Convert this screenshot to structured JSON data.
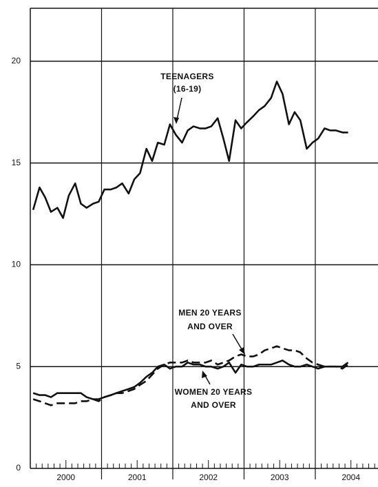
{
  "chart_data": {
    "type": "line",
    "x": [
      2000.04,
      2000.13,
      2000.21,
      2000.29,
      2000.38,
      2000.46,
      2000.54,
      2000.63,
      2000.71,
      2000.79,
      2000.88,
      2000.96,
      2001.04,
      2001.13,
      2001.21,
      2001.29,
      2001.38,
      2001.46,
      2001.54,
      2001.63,
      2001.71,
      2001.79,
      2001.88,
      2001.96,
      2002.04,
      2002.13,
      2002.21,
      2002.29,
      2002.38,
      2002.46,
      2002.54,
      2002.63,
      2002.71,
      2002.79,
      2002.88,
      2002.96,
      2003.04,
      2003.13,
      2003.21,
      2003.29,
      2003.38,
      2003.46,
      2003.54,
      2003.63,
      2003.71,
      2003.79,
      2003.88,
      2003.96,
      2004.04,
      2004.13,
      2004.21,
      2004.29,
      2004.38,
      2004.46
    ],
    "series": [
      {
        "name": "TEENAGERS (16-19)",
        "color": "#111111",
        "dashed": false,
        "values": [
          12.7,
          13.8,
          13.3,
          12.6,
          12.8,
          12.3,
          13.4,
          14.0,
          13.0,
          12.8,
          13.0,
          13.1,
          13.7,
          13.7,
          13.8,
          14.0,
          13.5,
          14.2,
          14.5,
          15.7,
          15.1,
          16.0,
          15.9,
          16.9,
          16.4,
          16.0,
          16.6,
          16.8,
          16.7,
          16.7,
          16.8,
          17.2,
          16.2,
          15.1,
          17.1,
          16.7,
          17.0,
          17.3,
          17.6,
          17.8,
          18.2,
          19.0,
          18.4,
          16.9,
          17.5,
          17.1,
          15.7,
          16.0,
          16.2,
          16.7,
          16.6,
          16.6,
          16.5,
          16.5
        ]
      },
      {
        "name": "MEN 20 YEARS AND OVER",
        "color": "#111111",
        "dashed": true,
        "values": [
          3.4,
          3.3,
          3.2,
          3.1,
          3.2,
          3.2,
          3.2,
          3.2,
          3.3,
          3.3,
          3.4,
          3.3,
          3.5,
          3.6,
          3.7,
          3.7,
          3.8,
          3.9,
          4.1,
          4.3,
          4.6,
          4.9,
          5.1,
          5.2,
          5.2,
          5.2,
          5.3,
          5.2,
          5.2,
          5.2,
          5.3,
          5.1,
          5.2,
          5.3,
          5.5,
          5.6,
          5.5,
          5.5,
          5.6,
          5.8,
          5.9,
          6.0,
          5.9,
          5.8,
          5.8,
          5.7,
          5.4,
          5.2,
          5.1,
          5.0,
          5.0,
          5.0,
          4.9,
          5.1
        ]
      },
      {
        "name": "WOMEN 20 YEARS AND OVER",
        "color": "#111111",
        "dashed": false,
        "values": [
          3.7,
          3.6,
          3.6,
          3.5,
          3.7,
          3.7,
          3.7,
          3.7,
          3.7,
          3.5,
          3.4,
          3.4,
          3.5,
          3.6,
          3.7,
          3.8,
          3.9,
          4.0,
          4.2,
          4.5,
          4.7,
          5.0,
          5.1,
          4.9,
          5.0,
          5.0,
          5.2,
          5.1,
          5.1,
          5.0,
          5.0,
          4.9,
          5.0,
          5.2,
          4.7,
          5.1,
          5.0,
          5.0,
          5.1,
          5.1,
          5.1,
          5.2,
          5.3,
          5.1,
          5.0,
          5.0,
          5.1,
          5.0,
          4.9,
          5.0,
          5.0,
          5.0,
          5.0,
          5.2
        ]
      }
    ],
    "annotations": [
      {
        "lines": [
          "TEENAGERS",
          "(16-19)"
        ]
      },
      {
        "lines": [
          "MEN 20 YEARS",
          "AND OVER"
        ]
      },
      {
        "lines": [
          "WOMEN 20 YEARS",
          "AND OVER"
        ]
      }
    ],
    "xlim": [
      2000,
      2004.88
    ],
    "xticks": [
      {
        "value": 2000.5,
        "label": "2000"
      },
      {
        "value": 2001.5,
        "label": "2001"
      },
      {
        "value": 2002.5,
        "label": "2002"
      },
      {
        "value": 2003.5,
        "label": "2003"
      },
      {
        "value": 2004.5,
        "label": "2004"
      }
    ],
    "ylim": [
      0,
      22.6
    ],
    "yticks": [
      0,
      5,
      10,
      15,
      20
    ],
    "grid": true
  }
}
